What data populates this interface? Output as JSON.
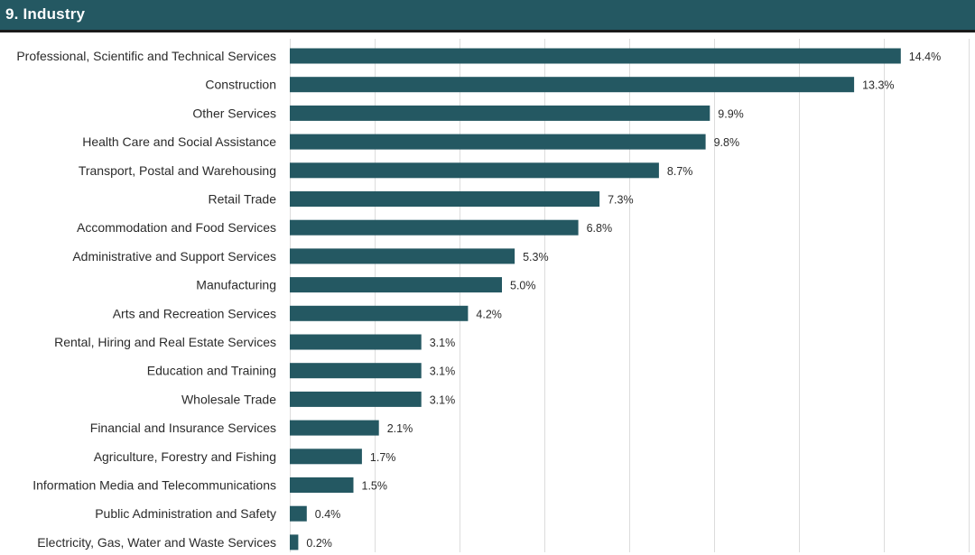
{
  "header": {
    "title": "9. Industry"
  },
  "colors": {
    "header_bg": "#245862",
    "bar": "#245862",
    "grid": "#dcdcdc"
  },
  "chart_data": {
    "type": "bar",
    "orientation": "horizontal",
    "title": "",
    "xlabel": "",
    "ylabel": "",
    "xlim": [
      0,
      16
    ],
    "grid": true,
    "legend": "none",
    "categories": [
      "Professional, Scientific and Technical Services",
      "Construction",
      "Other Services",
      "Health Care and Social Assistance",
      "Transport, Postal and Warehousing",
      "Retail Trade",
      "Accommodation and Food Services",
      "Administrative and Support Services",
      "Manufacturing",
      "Arts and Recreation Services",
      "Rental, Hiring and Real Estate Services",
      "Education and Training",
      "Wholesale Trade",
      "Financial and Insurance Services",
      "Agriculture, Forestry and Fishing",
      "Information Media and Telecommunications",
      "Public Administration and Safety",
      "Electricity, Gas, Water and Waste Services"
    ],
    "values": [
      14.4,
      13.3,
      9.9,
      9.8,
      8.7,
      7.3,
      6.8,
      5.3,
      5.0,
      4.2,
      3.1,
      3.1,
      3.1,
      2.1,
      1.7,
      1.5,
      0.4,
      0.2
    ],
    "data_labels": [
      "14.4%",
      "13.3%",
      "9.9%",
      "9.8%",
      "8.7%",
      "7.3%",
      "6.8%",
      "5.3%",
      "5.0%",
      "4.2%",
      "3.1%",
      "3.1%",
      "3.1%",
      "2.1%",
      "1.7%",
      "1.5%",
      "0.4%",
      "0.2%"
    ]
  }
}
